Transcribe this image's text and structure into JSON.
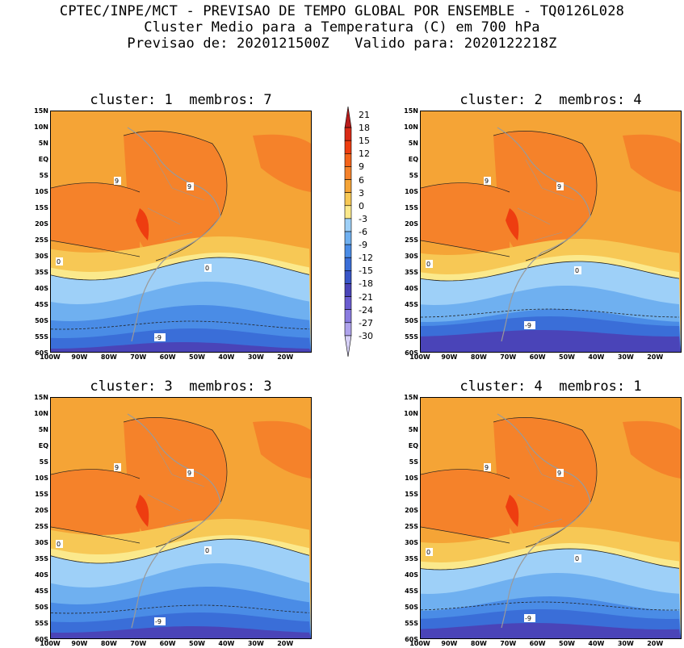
{
  "header": {
    "line1": "CPTEC/INPE/MCT - PREVISAO DE TEMPO GLOBAL POR ENSEMBLE - TQ0126L028",
    "line2": "Cluster Medio para a Temperatura (C) em 700 hPa",
    "line3": "Previsao de: 2020121500Z   Valido para: 2020122218Z"
  },
  "panels": [
    {
      "title": "cluster: 1  membros: 7"
    },
    {
      "title": "cluster: 2  membros: 4"
    },
    {
      "title": "cluster: 3  membros: 3"
    },
    {
      "title": "cluster: 4  membros: 1"
    }
  ],
  "lat_ticks": [
    "15N",
    "10N",
    "5N",
    "EQ",
    "5S",
    "10S",
    "15S",
    "20S",
    "25S",
    "30S",
    "35S",
    "40S",
    "45S",
    "50S",
    "55S",
    "60S"
  ],
  "lon_ticks": [
    "100W",
    "90W",
    "80W",
    "70W",
    "60W",
    "50W",
    "40W",
    "30W",
    "20W"
  ],
  "contour_labels": {
    "warm": "9",
    "zero": "0",
    "cold": "-9"
  },
  "colorbar": {
    "labels": [
      "21",
      "18",
      "15",
      "12",
      "9",
      "6",
      "3",
      "0",
      "-3",
      "-6",
      "-9",
      "-12",
      "-15",
      "-18",
      "-21",
      "-24",
      "-27",
      "-30"
    ],
    "colors": [
      "#b81c1c",
      "#d92a16",
      "#ee3d10",
      "#f4631a",
      "#f5822a",
      "#f5a436",
      "#f7c855",
      "#fbe98c",
      "#9ed0f8",
      "#6fb0f0",
      "#4a8ce6",
      "#3a6ed8",
      "#3856c8",
      "#4a44b8",
      "#6a5cd0",
      "#8a7ce0",
      "#aea2ec",
      "#d6d0f6"
    ]
  }
}
